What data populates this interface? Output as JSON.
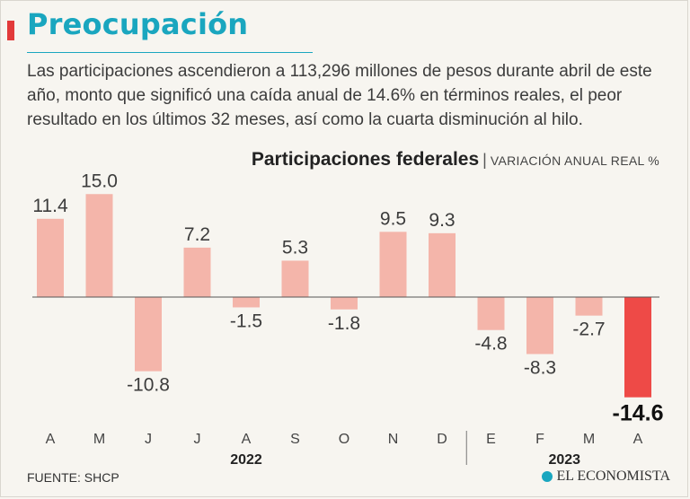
{
  "header": {
    "title": "Preocupación",
    "description": "Las participaciones ascendieron a 113,296 millones de pesos durante abril de este año, monto que significó una caída anual de 14.6%  en términos reales, el peor resultado en los últimos 32 meses, así como la cuarta disminución al hilo."
  },
  "chart_heading": {
    "title": "Participaciones federales",
    "separator": "|",
    "subtitle": "VARIACIÓN ANUAL REAL %"
  },
  "chart_data": {
    "type": "bar",
    "title": "Participaciones federales",
    "subtitle": "VARIACIÓN ANUAL REAL %",
    "categories": [
      "A",
      "M",
      "J",
      "J",
      "A",
      "S",
      "O",
      "N",
      "D",
      "E",
      "F",
      "M",
      "A"
    ],
    "values": [
      11.4,
      15.0,
      -10.8,
      7.2,
      -1.5,
      5.3,
      -1.8,
      9.5,
      9.3,
      -4.8,
      -8.3,
      -2.7,
      -14.6
    ],
    "labels": [
      "11.4",
      "15.0",
      "-10.8",
      "7.2",
      "-1.5",
      "5.3",
      "-1.8",
      "9.5",
      "9.3",
      "-4.8",
      "-8.3",
      "-2.7",
      "-14.6"
    ],
    "highlight_index": 12,
    "year_groups": [
      {
        "label": "2022",
        "start": 0,
        "end": 8
      },
      {
        "label": "2023",
        "start": 9,
        "end": 12
      }
    ],
    "ylim": [
      -15,
      15
    ],
    "colors": {
      "bar": "#f4b5aa",
      "highlight": "#ee4a47",
      "axis": "#555555"
    }
  },
  "footer": {
    "source": "FUENTE: SHCP",
    "brand": "EL ECONOMISTA"
  }
}
